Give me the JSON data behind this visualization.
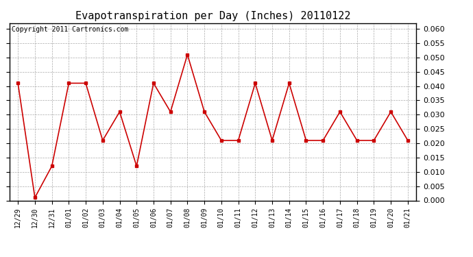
{
  "title": "Evapotranspiration per Day (Inches) 20110122",
  "copyright_text": "Copyright 2011 Cartronics.com",
  "x_labels": [
    "12/29",
    "12/30",
    "12/31",
    "01/01",
    "01/02",
    "01/03",
    "01/04",
    "01/05",
    "01/06",
    "01/07",
    "01/08",
    "01/09",
    "01/10",
    "01/11",
    "01/12",
    "01/13",
    "01/14",
    "01/15",
    "01/16",
    "01/17",
    "01/18",
    "01/19",
    "01/20",
    "01/21"
  ],
  "y_values": [
    0.041,
    0.001,
    0.012,
    0.041,
    0.041,
    0.021,
    0.031,
    0.012,
    0.041,
    0.031,
    0.051,
    0.031,
    0.021,
    0.021,
    0.041,
    0.021,
    0.041,
    0.021,
    0.021,
    0.031,
    0.021,
    0.021,
    0.031,
    0.021
  ],
  "line_color": "#cc0000",
  "marker": "s",
  "marker_size": 3,
  "ylim": [
    0.0,
    0.062
  ],
  "ytick_interval": 0.005,
  "background_color": "#ffffff",
  "grid_color": "#aaaaaa",
  "title_fontsize": 11,
  "copyright_fontsize": 7,
  "tick_fontsize": 7,
  "ytick_fontsize": 8
}
